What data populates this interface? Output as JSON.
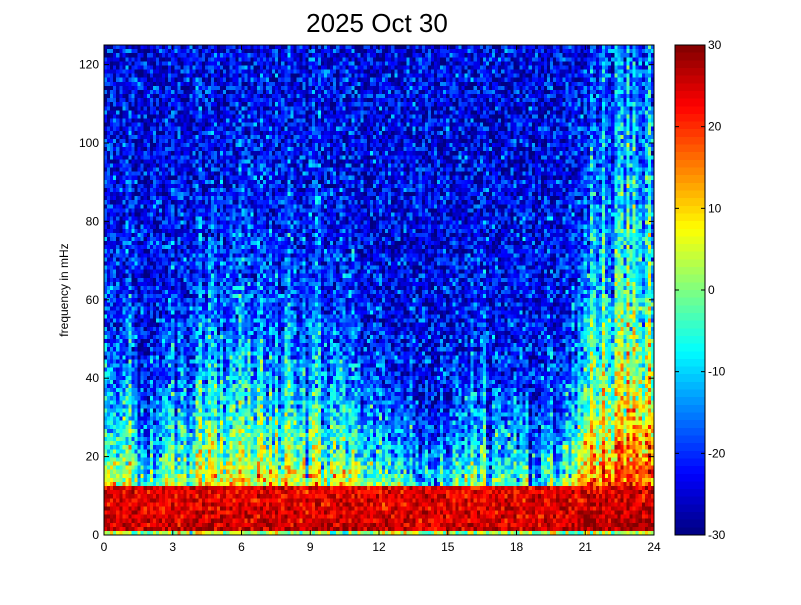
{
  "chart_data": {
    "type": "heatmap",
    "title": "2025 Oct 30",
    "xlabel": "",
    "ylabel": "frequency in mHz",
    "xlim": [
      0,
      24
    ],
    "ylim": [
      0,
      125
    ],
    "x_ticks": [
      0,
      3,
      6,
      9,
      12,
      15,
      18,
      21,
      24
    ],
    "y_ticks": [
      0,
      20,
      40,
      60,
      80,
      100,
      120
    ],
    "colorbar": {
      "colormap": "jet",
      "clim": [
        -30,
        30
      ],
      "ticks": [
        -30,
        -20,
        -10,
        0,
        10,
        20,
        30
      ]
    },
    "columns": 180,
    "rows": 120,
    "x_knots": [
      0,
      1,
      2,
      3,
      4,
      5,
      6,
      7,
      8,
      9,
      10,
      11,
      12,
      13,
      13.7,
      14.5,
      15,
      16,
      17,
      18,
      19,
      19.7,
      20.3,
      21,
      21.5,
      22,
      23,
      24
    ],
    "decay_knots": [
      20,
      22,
      15,
      22,
      22,
      35,
      32,
      30,
      28,
      30,
      22,
      17,
      16,
      12,
      10,
      12,
      15,
      16,
      18,
      17,
      15,
      14,
      20,
      40,
      55,
      60,
      65,
      62
    ],
    "surface_level_db": 28,
    "floor_level_db": -24,
    "lowest_row_level_db": 2,
    "noise_db": 7,
    "seed": 20251030
  }
}
